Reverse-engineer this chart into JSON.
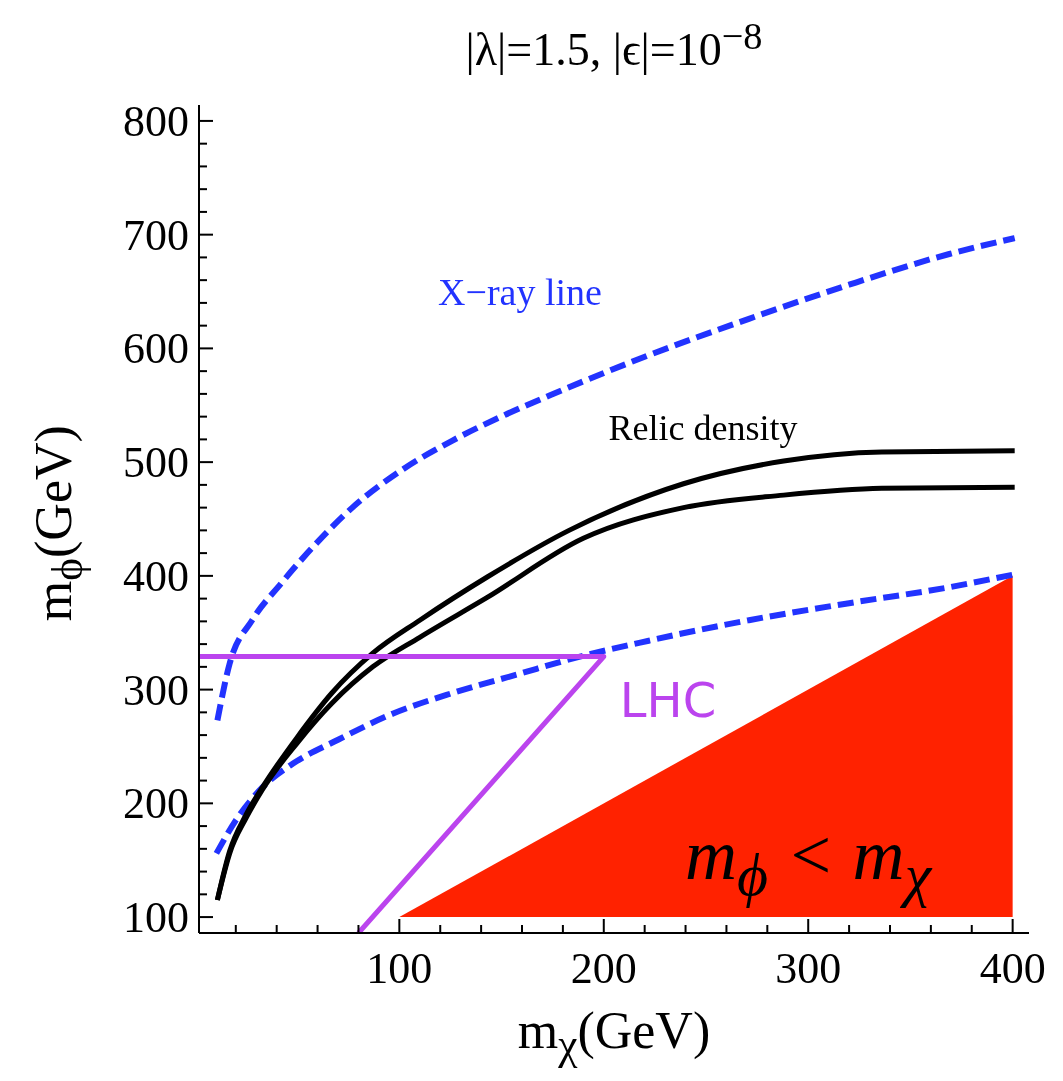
{
  "chart_data": {
    "type": "line",
    "title": "|λ|=1.5, |ϵ|=10$^{−8}$",
    "xlabel": "m$_{χ}$(GeV)",
    "ylabel": "m$_{ϕ}$(GeV)",
    "xlim": [
      2,
      408
    ],
    "ylim": [
      86,
      814
    ],
    "xticks": [
      {
        "value": 20,
        "label": null
      },
      {
        "value": 40,
        "label": null
      },
      {
        "value": 60,
        "label": null
      },
      {
        "value": 80,
        "label": null
      },
      100,
      {
        "value": 120,
        "label": null
      },
      {
        "value": 140,
        "label": null
      },
      {
        "value": 160,
        "label": null
      },
      {
        "value": 180,
        "label": null
      },
      200,
      {
        "value": 220,
        "label": null
      },
      {
        "value": 240,
        "label": null
      },
      {
        "value": 260,
        "label": null
      },
      {
        "value": 280,
        "label": null
      },
      300,
      {
        "value": 320,
        "label": null
      },
      {
        "value": 340,
        "label": null
      },
      {
        "value": 360,
        "label": null
      },
      {
        "value": 380,
        "label": null
      },
      400
    ],
    "yticks": [
      100,
      {
        "value": 120,
        "label": null
      },
      {
        "value": 140,
        "label": null
      },
      {
        "value": 160,
        "label": null
      },
      {
        "value": 180,
        "label": null
      },
      200,
      {
        "value": 220,
        "label": null
      },
      {
        "value": 240,
        "label": null
      },
      {
        "value": 260,
        "label": null
      },
      {
        "value": 280,
        "label": null
      },
      300,
      {
        "value": 320,
        "label": null
      },
      {
        "value": 340,
        "label": null
      },
      {
        "value": 360,
        "label": null
      },
      {
        "value": 380,
        "label": null
      },
      400,
      {
        "value": 420,
        "label": null
      },
      {
        "value": 440,
        "label": null
      },
      {
        "value": 460,
        "label": null
      },
      {
        "value": 480,
        "label": null
      },
      500,
      {
        "value": 520,
        "label": null
      },
      {
        "value": 540,
        "label": null
      },
      {
        "value": 560,
        "label": null
      },
      {
        "value": 580,
        "label": null
      },
      600,
      {
        "value": 620,
        "label": null
      },
      {
        "value": 640,
        "label": null
      },
      {
        "value": 660,
        "label": null
      },
      {
        "value": 680,
        "label": null
      },
      700,
      {
        "value": 720,
        "label": null
      },
      {
        "value": 740,
        "label": null
      },
      {
        "value": 760,
        "label": null
      },
      {
        "value": 780,
        "label": null
      },
      800
    ],
    "series": [
      {
        "type": "line",
        "color": "#2233ff",
        "line_style": "dashed",
        "x": [
          11,
          17,
          28,
          42,
          55,
          77,
          102,
          126,
          151,
          174,
          222,
          271,
          320,
          369,
          401
        ],
        "values": [
          273,
          323,
          361,
          393,
          420,
          460,
          494,
          519,
          541,
          559,
          594,
          626,
          656,
          683,
          697
        ]
      },
      {
        "type": "line",
        "color": "#2233ff",
        "line_style": "dashed",
        "x": [
          10.5,
          20,
          33,
          48,
          69,
          97,
          126,
          159,
          182,
          222,
          271,
          320,
          369,
          400
        ],
        "values": [
          156,
          185,
          214,
          235,
          255,
          279,
          297,
          314,
          326,
          343,
          361,
          376,
          390,
          401
        ]
      },
      {
        "type": "line",
        "color": "#000000",
        "line_style": "solid",
        "x": [
          11,
          17,
          25,
          33,
          50,
          67,
          87,
          110,
          143,
          183,
          239,
          288,
          336,
          401
        ],
        "values": [
          115,
          158,
          190,
          214,
          258,
          297,
          332,
          361,
          399,
          440,
          481,
          501,
          509,
          510
        ]
      },
      {
        "type": "line",
        "color": "#000000",
        "line_style": "solid",
        "x": [
          11,
          17,
          25,
          33,
          50,
          67,
          87,
          110,
          143,
          190,
          239,
          288,
          336,
          401
        ],
        "values": [
          115,
          156,
          187,
          212,
          253,
          288,
          320,
          346,
          381,
          433,
          460,
          471,
          477,
          478
        ]
      },
      {
        "type": "line",
        "color": "#bb44ee",
        "line_style": "solid",
        "x": [
          2,
          200,
          80
        ],
        "values": [
          329,
          329,
          86
        ]
      },
      {
        "type": "area",
        "color": "#ff2200",
        "x": [
          100,
          400
        ],
        "values": [
          100,
          400
        ]
      }
    ],
    "annotations": [
      "X−ray line",
      "Relic density",
      "LHC",
      "m$_{ϕ}$ < m$_{χ}$"
    ]
  }
}
